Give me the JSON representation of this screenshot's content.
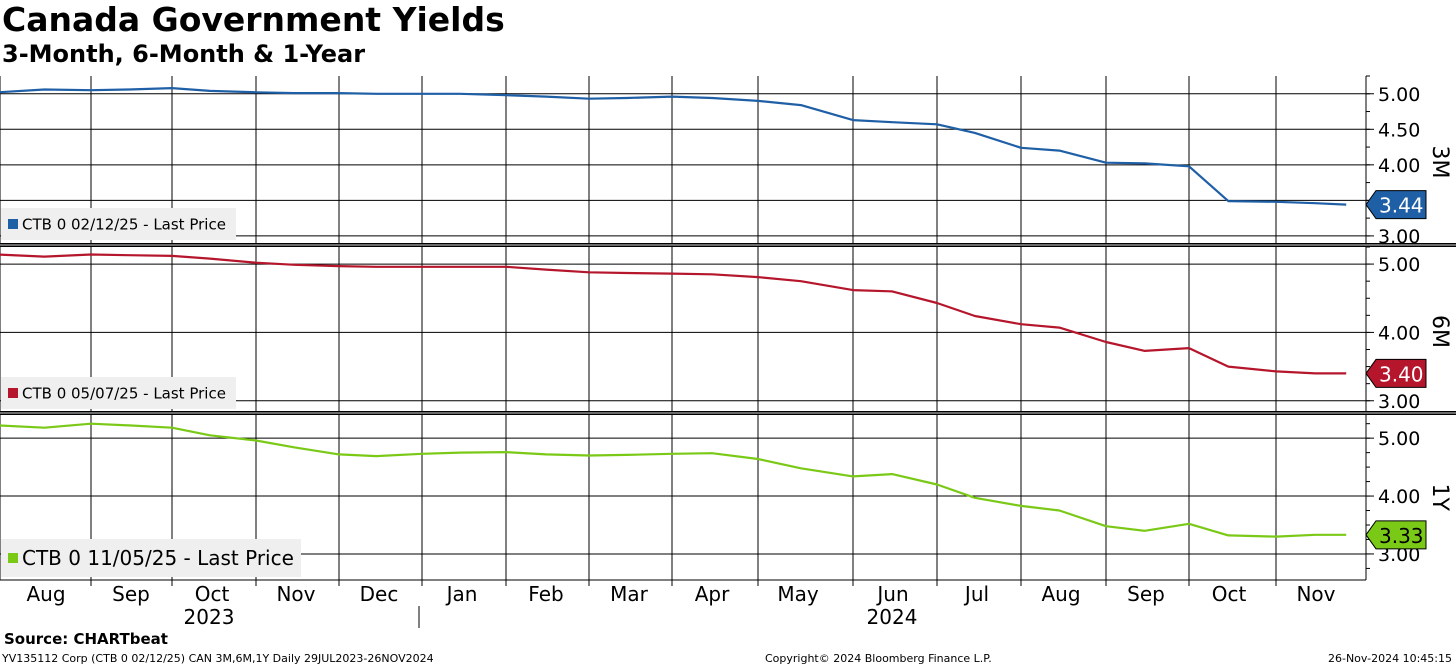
{
  "title": "Canada Government Yields",
  "subtitle": "3-Month, 6-Month & 1-Year",
  "source": "Source: CHARTbeat",
  "footer": {
    "left": "YV135112 Corp (CTB 0 02/12/25) CAN 3M,6M,1Y  Daily 29JUL2023-26NOV2024",
    "center": "Copyright© 2024 Bloomberg Finance L.P.",
    "right": "26-Nov-2024 10:45:15"
  },
  "chart_data": {
    "type": "line",
    "x_tick_labels": [
      "Aug",
      "Sep",
      "Oct",
      "Nov",
      "Dec",
      "Jan",
      "Feb",
      "Mar",
      "Apr",
      "May",
      "Jun",
      "Jul",
      "Aug",
      "Sep",
      "Oct",
      "Nov"
    ],
    "year_labels": [
      "2023",
      "2024"
    ],
    "x": [
      "2023-07-29",
      "2023-08-15",
      "2023-09-01",
      "2023-09-15",
      "2023-10-01",
      "2023-10-15",
      "2023-11-01",
      "2023-11-15",
      "2023-12-01",
      "2023-12-15",
      "2024-01-01",
      "2024-01-15",
      "2024-02-01",
      "2024-02-15",
      "2024-03-01",
      "2024-03-15",
      "2024-04-01",
      "2024-04-15",
      "2024-05-01",
      "2024-05-15",
      "2024-06-01",
      "2024-06-15",
      "2024-07-01",
      "2024-07-15",
      "2024-08-01",
      "2024-08-15",
      "2024-09-01",
      "2024-09-15",
      "2024-10-01",
      "2024-10-15",
      "2024-11-01",
      "2024-11-15",
      "2024-11-26"
    ],
    "grid": true,
    "panels": [
      {
        "axis_label": "3M",
        "legend": "CTB 0 02/12/25 - Last Price",
        "color": "#1f5fa6",
        "last_value": "3.44",
        "y_ticks": [
          "5.00",
          "4.50",
          "4.00",
          "3.50",
          "3.00"
        ],
        "ylim": [
          2.9,
          5.25
        ],
        "values": [
          5.02,
          5.06,
          5.05,
          5.06,
          5.08,
          5.04,
          5.02,
          5.01,
          5.01,
          5.0,
          5.0,
          5.0,
          4.98,
          4.96,
          4.93,
          4.94,
          4.96,
          4.94,
          4.9,
          4.84,
          4.63,
          4.6,
          4.57,
          4.45,
          4.24,
          4.2,
          4.03,
          4.02,
          3.98,
          3.49,
          3.48,
          3.46,
          3.44
        ]
      },
      {
        "axis_label": "6M",
        "legend": "CTB 0 05/07/25 - Last Price",
        "color": "#b5162c",
        "last_value": "3.40",
        "y_ticks": [
          "5.00",
          "4.00",
          "3.00"
        ],
        "ylim": [
          2.85,
          5.25
        ],
        "values": [
          5.14,
          5.11,
          5.14,
          5.13,
          5.12,
          5.08,
          5.02,
          4.99,
          4.97,
          4.96,
          4.96,
          4.96,
          4.96,
          4.92,
          4.88,
          4.87,
          4.86,
          4.85,
          4.81,
          4.75,
          4.62,
          4.6,
          4.43,
          4.24,
          4.12,
          4.07,
          3.86,
          3.73,
          3.77,
          3.5,
          3.43,
          3.4,
          3.4
        ]
      },
      {
        "axis_label": "1Y",
        "legend": "CTB 0 11/05/25 - Last Price",
        "color": "#7ac917",
        "last_value": "3.33",
        "y_ticks": [
          "5.00",
          "4.00",
          "3.00"
        ],
        "ylim": [
          2.55,
          5.4
        ],
        "values": [
          5.22,
          5.18,
          5.25,
          5.22,
          5.18,
          5.05,
          4.96,
          4.84,
          4.72,
          4.69,
          4.73,
          4.75,
          4.76,
          4.72,
          4.7,
          4.71,
          4.73,
          4.74,
          4.64,
          4.48,
          4.34,
          4.38,
          4.2,
          3.97,
          3.83,
          3.75,
          3.48,
          3.4,
          3.52,
          3.32,
          3.3,
          3.33,
          3.33
        ]
      }
    ]
  }
}
